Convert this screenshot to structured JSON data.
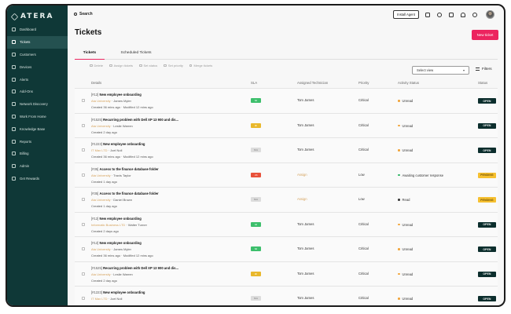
{
  "brand": {
    "name": "ATERA"
  },
  "sidebar": {
    "items": [
      {
        "label": "Dashboard",
        "icon": "dashboard-icon",
        "active": false
      },
      {
        "label": "Tickets",
        "icon": "ticket-icon",
        "active": true
      },
      {
        "label": "Customers",
        "icon": "customers-icon",
        "active": false
      },
      {
        "label": "Devices",
        "icon": "devices-icon",
        "active": false
      },
      {
        "label": "Alerts",
        "icon": "alerts-icon",
        "active": false
      },
      {
        "label": "Add-Ons",
        "icon": "addons-icon",
        "active": false
      },
      {
        "label": "Network Discovery",
        "icon": "network-icon",
        "active": false
      },
      {
        "label": "Work From Home",
        "icon": "home-icon",
        "active": false
      },
      {
        "label": "Knowledge Base",
        "icon": "book-icon",
        "active": false
      },
      {
        "label": "Reports",
        "icon": "reports-icon",
        "active": false
      },
      {
        "label": "Billing",
        "icon": "billing-icon",
        "active": false
      },
      {
        "label": "Admin",
        "icon": "admin-icon",
        "active": false
      },
      {
        "label": "Get Rewards",
        "icon": "gift-icon",
        "active": false
      }
    ]
  },
  "topbar": {
    "search_label": "Search",
    "install_agent": "Install Agent",
    "icons": [
      "add-icon",
      "bulb-icon",
      "chat-icon",
      "bell-icon",
      "help-icon"
    ]
  },
  "page": {
    "title": "Tickets",
    "new_ticket": "New ticket",
    "tabs": [
      {
        "label": "Tickets",
        "active": true
      },
      {
        "label": "Scheduled Tickets",
        "active": false
      }
    ],
    "bulk_actions": [
      "Delete",
      "Assign tickets",
      "Set status",
      "Set priority",
      "Merge tickets"
    ],
    "select_view": "Select view",
    "filters": "Filters"
  },
  "table": {
    "columns": [
      "Details",
      "SLA",
      "Assigned Technician",
      "Priority",
      "Activity Status",
      "Status"
    ],
    "rows": [
      {
        "id": "[#12]",
        "title": "New employee onboarding",
        "company": "Ata University",
        "contact": "James Myler",
        "meta": "Created 36 mins ago · Modified 12 mins ago",
        "sla": "6d",
        "sla_color": "#3dbf6c",
        "tech": "Tom James",
        "tech_assign": false,
        "priority": "Critical",
        "activity": "Unread",
        "activity_color": "#f1a43a",
        "status": "OPEN",
        "status_bg": "#0c2e2d",
        "status_fg": "#ffffff"
      },
      {
        "id": "[#1525]",
        "title": "Recurring problem with Dell XP 13 900 and dis...",
        "company": "Ata University",
        "contact": "Leslie Warren",
        "meta": "Created 2 day ago",
        "sla": "3h",
        "sla_color": "#e9b82c",
        "tech": "Tom James",
        "tech_assign": false,
        "priority": "Critical",
        "activity": "Unread",
        "activity_color": "#f1a43a",
        "status": "OPEN",
        "status_bg": "#0c2e2d",
        "status_fg": "#ffffff"
      },
      {
        "id": "[#1223]",
        "title": "New employee onboarding",
        "company": "IT Max LTD",
        "contact": "Joel Noll",
        "meta": "Created 36 mins ago · Modified 12 mins ago",
        "sla": "N/A",
        "sla_color": "#dcdcdc",
        "tech": "Tom James",
        "tech_assign": false,
        "priority": "Critical",
        "activity": "Unread",
        "activity_color": "#f1a43a",
        "status": "OPEN",
        "status_bg": "#0c2e2d",
        "status_fg": "#ffffff"
      },
      {
        "id": "[#35]",
        "title": "Access to the finance database folder",
        "company": "Ata University",
        "contact": "Travis Taylor",
        "meta": "Created 1 day ago",
        "sla": "-3h",
        "sla_color": "#e8513a",
        "tech": "Assign",
        "tech_assign": true,
        "priority": "Low",
        "activity": "Awaiting customer response",
        "activity_color": "#2fb563",
        "status": "PENDING",
        "status_bg": "#f6c030",
        "status_fg": "#6a4b00"
      },
      {
        "id": "[#35]",
        "title": "Access to the finance database folder",
        "company": "Ata University",
        "contact": "Daniel Brown",
        "meta": "Created 1 day ago",
        "sla": "N/A",
        "sla_color": "#dcdcdc",
        "tech": "Assign",
        "tech_assign": true,
        "priority": "Low",
        "activity": "Read",
        "activity_color": "#3a3a3a",
        "status": "PENDING",
        "status_bg": "#f6c030",
        "status_fg": "#6a4b00"
      },
      {
        "id": "[#12]",
        "title": "New employee onboarding",
        "company": "Informatic Business LTD",
        "contact": "Walter Turner",
        "meta": "Created 2 days ago",
        "sla": "4d",
        "sla_color": "#3dbf6c",
        "tech": "Tom James",
        "tech_assign": false,
        "priority": "Critical",
        "activity": "Unread",
        "activity_color": "#f1a43a",
        "status": "OPEN",
        "status_bg": "#0c2e2d",
        "status_fg": "#ffffff"
      },
      {
        "id": "[#12]",
        "title": "New employee onboarding",
        "company": "Ata University",
        "contact": "James Myler",
        "meta": "Created 36 mins ago · Modified 12 mins ago",
        "sla": "6d",
        "sla_color": "#3dbf6c",
        "tech": "Tom James",
        "tech_assign": false,
        "priority": "Critical",
        "activity": "Unread",
        "activity_color": "#f1a43a",
        "status": "OPEN",
        "status_bg": "#0c2e2d",
        "status_fg": "#ffffff"
      },
      {
        "id": "[#1525]",
        "title": "Recurring problem with Dell XP 13 900 and dis...",
        "company": "Ata University",
        "contact": "Leslie Warren",
        "meta": "Created 2 day ago",
        "sla": "3h",
        "sla_color": "#e9b82c",
        "tech": "Tom James",
        "tech_assign": false,
        "priority": "Critical",
        "activity": "Unread",
        "activity_color": "#f1a43a",
        "status": "OPEN",
        "status_bg": "#0c2e2d",
        "status_fg": "#ffffff"
      },
      {
        "id": "[#1223]",
        "title": "New employee onboarding",
        "company": "IT Max LTD",
        "contact": "Joel Noll",
        "meta": "",
        "sla": "N/A",
        "sla_color": "#dcdcdc",
        "tech": "Tom James",
        "tech_assign": false,
        "priority": "Critical",
        "activity": "Unread",
        "activity_color": "#f1a43a",
        "status": "OPEN",
        "status_bg": "#0c2e2d",
        "status_fg": "#ffffff"
      }
    ]
  }
}
